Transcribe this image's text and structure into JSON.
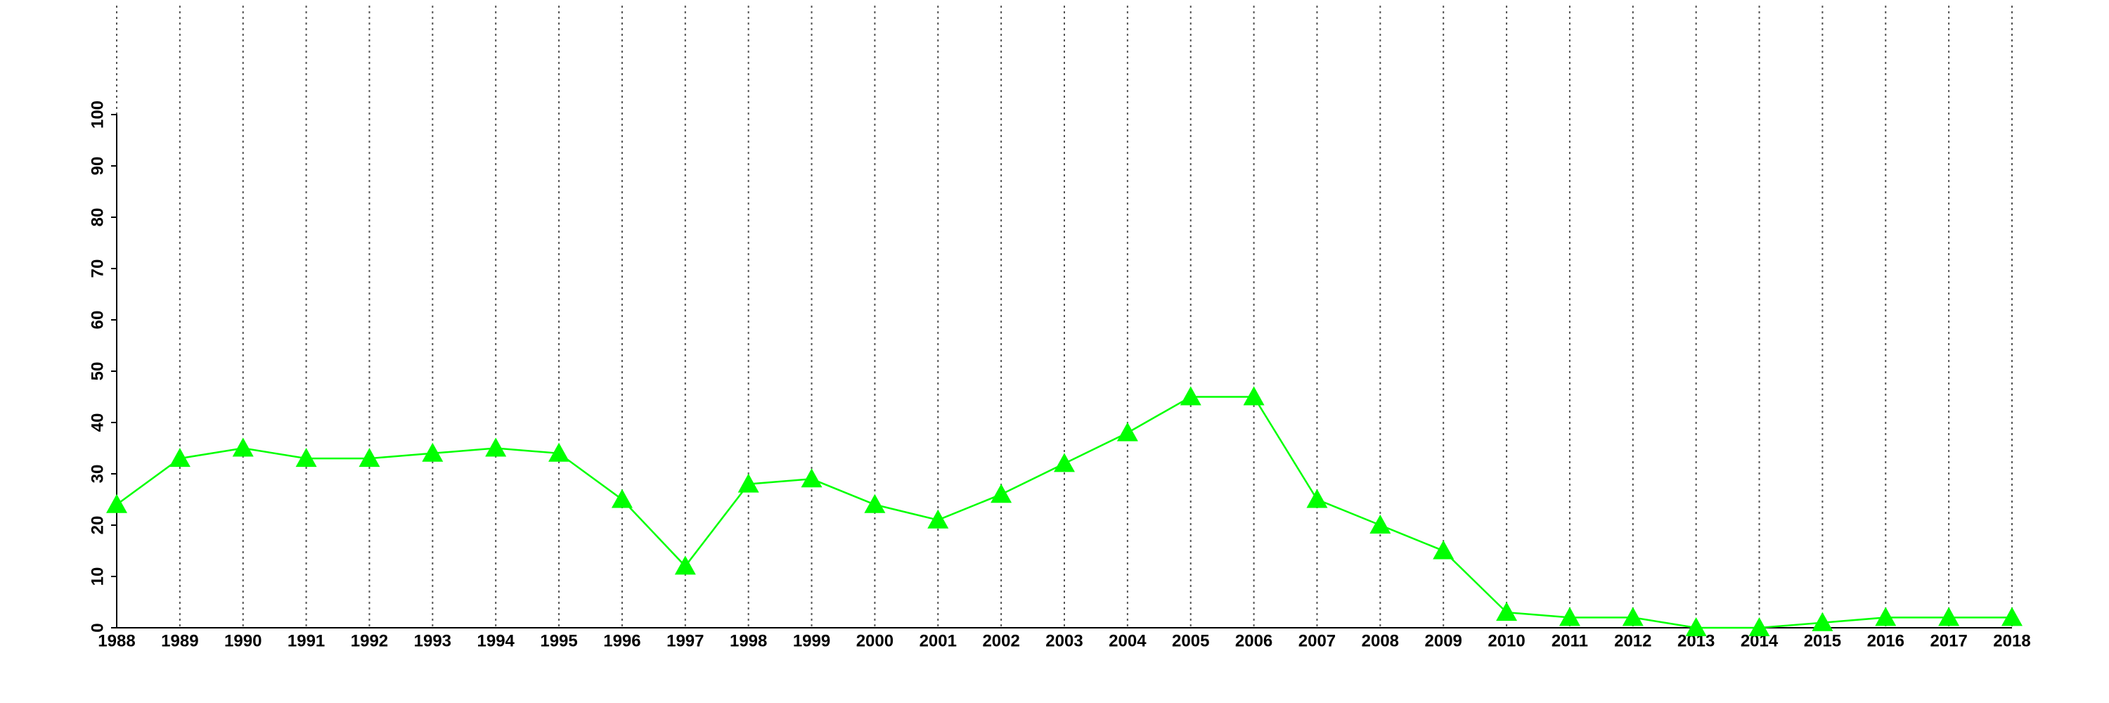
{
  "chart_data": {
    "type": "line",
    "x": [
      1988,
      1989,
      1990,
      1991,
      1992,
      1993,
      1994,
      1995,
      1996,
      1997,
      1998,
      1999,
      2000,
      2001,
      2002,
      2003,
      2004,
      2005,
      2006,
      2007,
      2008,
      2009,
      2010,
      2011,
      2012,
      2013,
      2014,
      2015,
      2016,
      2017,
      2018
    ],
    "values": [
      24,
      33,
      35,
      33,
      33,
      34,
      35,
      34,
      25,
      12,
      28,
      29,
      24,
      21,
      26,
      32,
      38,
      45,
      45,
      25,
      20,
      15,
      3,
      2,
      2,
      0,
      0,
      1,
      2,
      2,
      2
    ],
    "color": "#00ff00",
    "xlim": [
      1988,
      2018
    ],
    "xticks": [
      1988,
      1989,
      1990,
      1991,
      1992,
      1993,
      1994,
      1995,
      1996,
      1997,
      1998,
      1999,
      2000,
      2001,
      2002,
      2003,
      2004,
      2005,
      2006,
      2007,
      2008,
      2009,
      2010,
      2011,
      2012,
      2013,
      2014,
      2015,
      2016,
      2017,
      2018
    ],
    "ylim": [
      0,
      100
    ],
    "yticks": [
      0,
      10,
      20,
      30,
      40,
      50,
      60,
      70,
      80,
      90,
      100
    ],
    "grid": true
  }
}
